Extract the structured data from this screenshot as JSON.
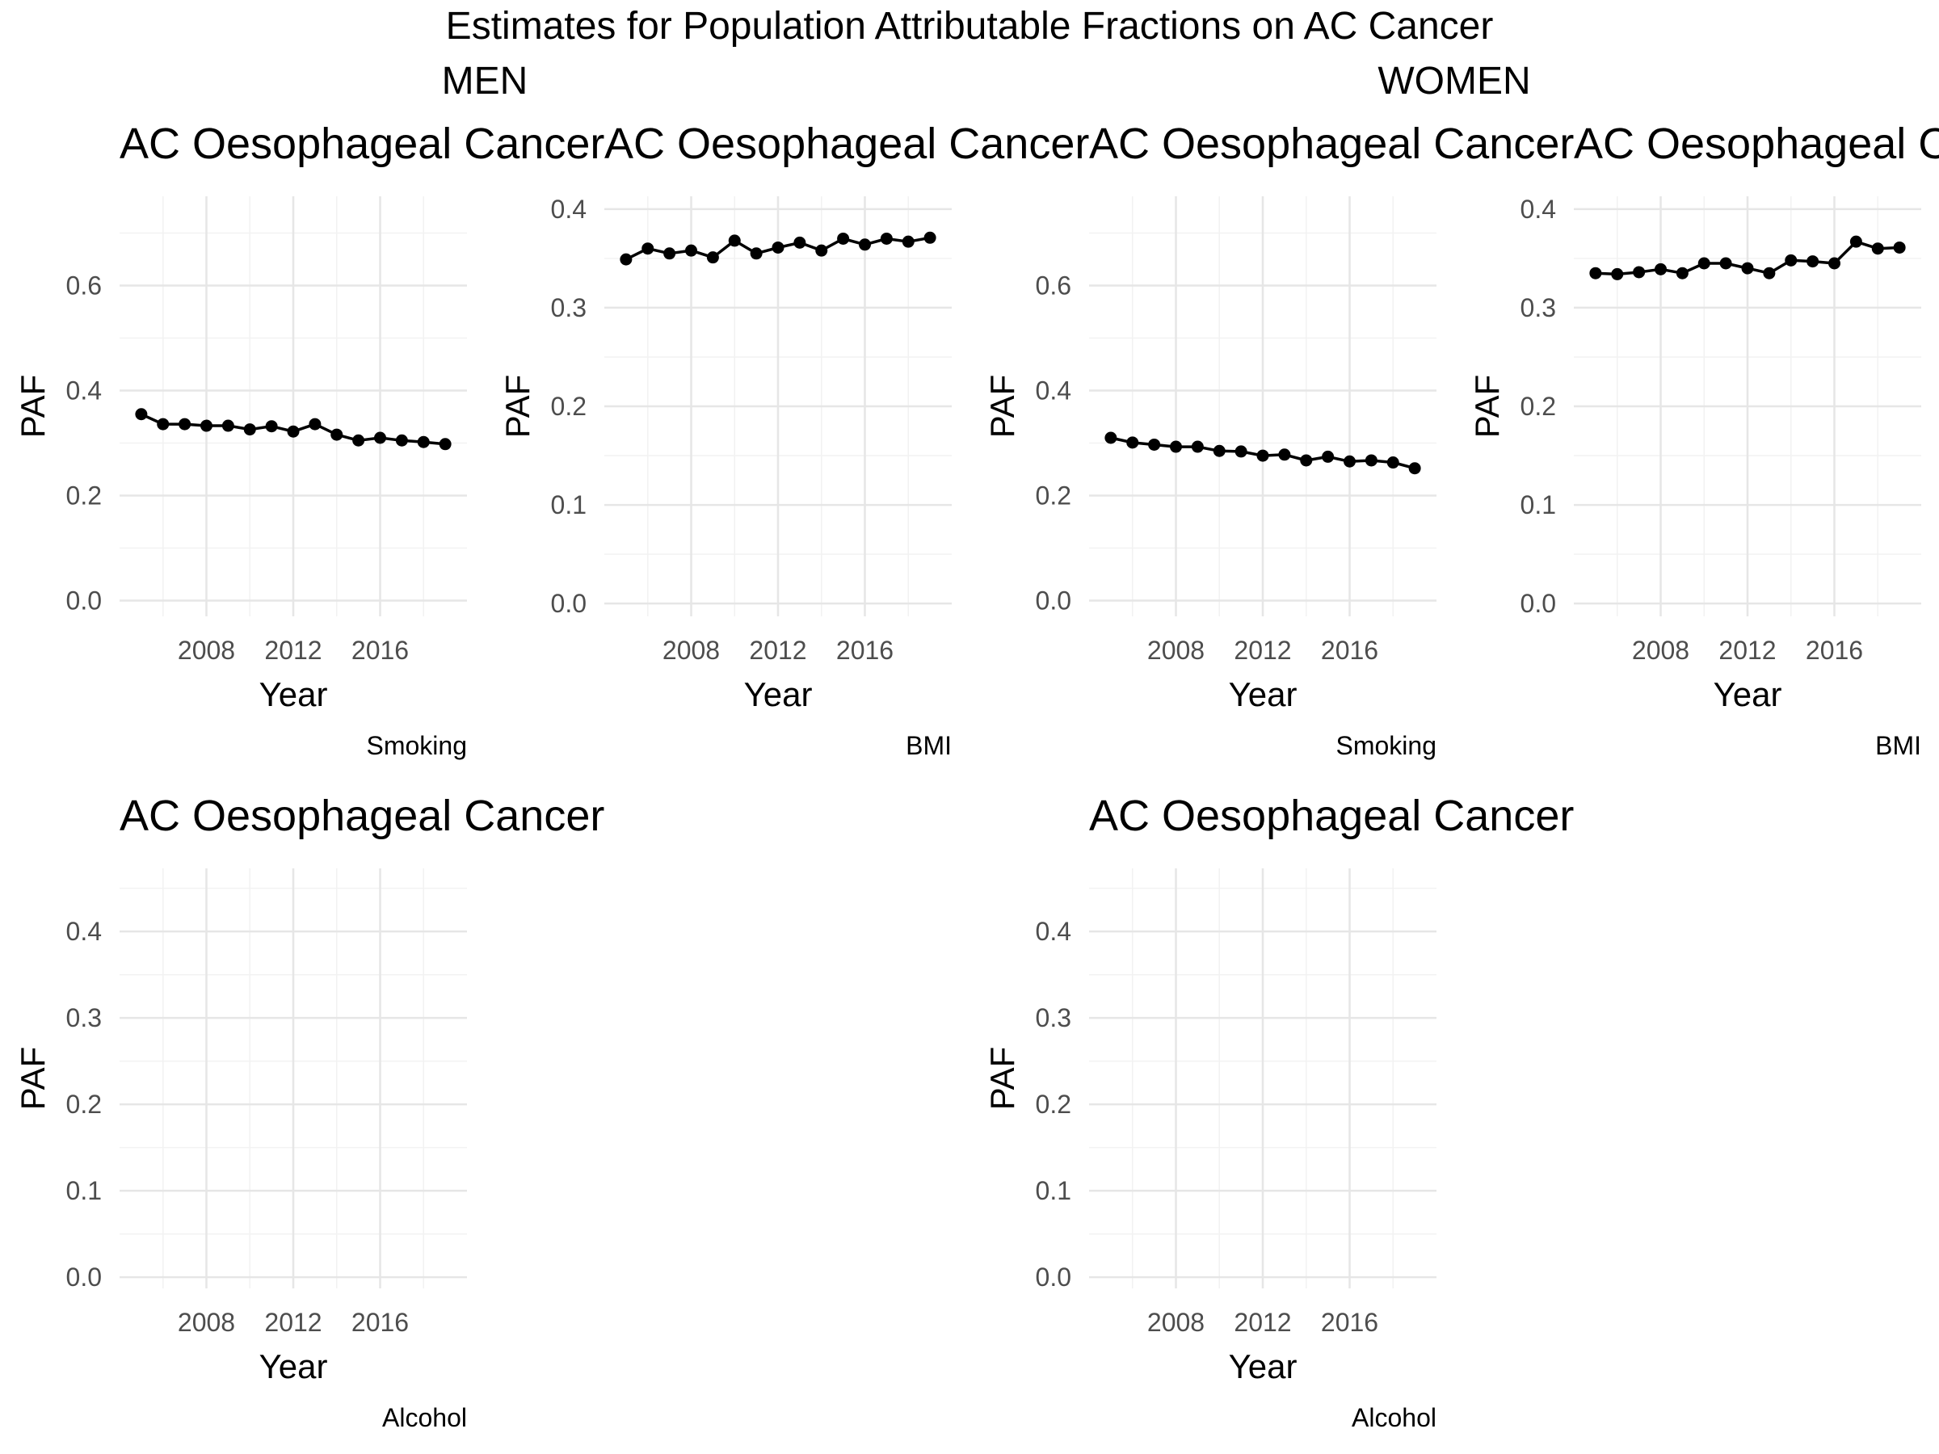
{
  "figure": {
    "title": "Estimates for Population Attributable Fractions on AC Cancer",
    "groups": [
      "MEN",
      "WOMEN"
    ]
  },
  "chart_data": [
    {
      "type": "line",
      "group": "MEN",
      "title": "AC Oesophageal Cancer",
      "caption": "Smoking",
      "xlabel": "Year",
      "ylabel": "PAF",
      "x": [
        2005,
        2006,
        2007,
        2008,
        2009,
        2010,
        2011,
        2012,
        2013,
        2014,
        2015,
        2016,
        2017,
        2018,
        2019
      ],
      "values": [
        0.355,
        0.336,
        0.336,
        0.333,
        0.333,
        0.326,
        0.332,
        0.322,
        0.336,
        0.316,
        0.305,
        0.31,
        0.305,
        0.302,
        0.298
      ],
      "xlim": [
        2004,
        2020
      ],
      "ylim": [
        -0.03,
        0.77
      ],
      "xticks": [
        2008,
        2012,
        2016
      ],
      "xtick_labels": [
        "2008",
        "2012",
        "2016"
      ],
      "yticks": [
        0.0,
        0.2,
        0.4,
        0.6
      ],
      "ytick_labels": [
        "0.0",
        "0.2",
        "0.4",
        "0.6"
      ],
      "grid": true
    },
    {
      "type": "line",
      "group": "MEN",
      "title": "AC Oesophageal Cancer",
      "caption": "BMI",
      "xlabel": "Year",
      "ylabel": "PAF",
      "x": [
        2005,
        2006,
        2007,
        2008,
        2009,
        2010,
        2011,
        2012,
        2013,
        2014,
        2015,
        2016,
        2017,
        2018,
        2019
      ],
      "values": [
        0.349,
        0.36,
        0.355,
        0.358,
        0.351,
        0.368,
        0.355,
        0.361,
        0.366,
        0.358,
        0.37,
        0.364,
        0.37,
        0.367,
        0.371
      ],
      "xlim": [
        2004,
        2020
      ],
      "ylim": [
        -0.013,
        0.413
      ],
      "xticks": [
        2008,
        2012,
        2016
      ],
      "xtick_labels": [
        "2008",
        "2012",
        "2016"
      ],
      "yticks": [
        0.0,
        0.1,
        0.2,
        0.3,
        0.4
      ],
      "ytick_labels": [
        "0.0",
        "0.1",
        "0.2",
        "0.3",
        "0.4"
      ],
      "grid": true
    },
    {
      "type": "line",
      "group": "WOMEN",
      "title": "AC Oesophageal Cancer",
      "caption": "Smoking",
      "xlabel": "Year",
      "ylabel": "PAF",
      "x": [
        2005,
        2006,
        2007,
        2008,
        2009,
        2010,
        2011,
        2012,
        2013,
        2014,
        2015,
        2016,
        2017,
        2018,
        2019
      ],
      "values": [
        0.31,
        0.301,
        0.297,
        0.293,
        0.293,
        0.285,
        0.284,
        0.276,
        0.278,
        0.267,
        0.274,
        0.265,
        0.267,
        0.263,
        0.252
      ],
      "xlim": [
        2004,
        2020
      ],
      "ylim": [
        -0.03,
        0.77
      ],
      "xticks": [
        2008,
        2012,
        2016
      ],
      "xtick_labels": [
        "2008",
        "2012",
        "2016"
      ],
      "yticks": [
        0.0,
        0.2,
        0.4,
        0.6
      ],
      "ytick_labels": [
        "0.0",
        "0.2",
        "0.4",
        "0.6"
      ],
      "grid": true
    },
    {
      "type": "line",
      "group": "WOMEN",
      "title": "AC Oesophageal C",
      "caption": "BMI",
      "xlabel": "Year",
      "ylabel": "PAF",
      "x": [
        2005,
        2006,
        2007,
        2008,
        2009,
        2010,
        2011,
        2012,
        2013,
        2014,
        2015,
        2016,
        2017,
        2018,
        2019
      ],
      "values": [
        0.335,
        0.334,
        0.336,
        0.339,
        0.335,
        0.345,
        0.345,
        0.34,
        0.335,
        0.348,
        0.347,
        0.345,
        0.367,
        0.36,
        0.361
      ],
      "xlim": [
        2004,
        2020
      ],
      "ylim": [
        -0.013,
        0.413
      ],
      "xticks": [
        2008,
        2012,
        2016
      ],
      "xtick_labels": [
        "2008",
        "2012",
        "2016"
      ],
      "yticks": [
        0.0,
        0.1,
        0.2,
        0.3,
        0.4
      ],
      "ytick_labels": [
        "0.0",
        "0.1",
        "0.2",
        "0.3",
        "0.4"
      ],
      "grid": true
    },
    {
      "type": "line",
      "group": "MEN",
      "title": "AC Oesophageal Cancer",
      "caption": "Alcohol",
      "xlabel": "Year",
      "ylabel": "PAF",
      "x": [],
      "values": [],
      "xlim": [
        2004,
        2020
      ],
      "ylim": [
        -0.013,
        0.473
      ],
      "xticks": [
        2008,
        2012,
        2016
      ],
      "xtick_labels": [
        "2008",
        "2012",
        "2016"
      ],
      "yticks": [
        0.0,
        0.1,
        0.2,
        0.3,
        0.4
      ],
      "ytick_labels": [
        "0.0",
        "0.1",
        "0.2",
        "0.3",
        "0.4"
      ],
      "grid": true
    },
    {
      "type": "line",
      "group": "WOMEN",
      "title": "AC Oesophageal Cancer",
      "caption": "Alcohol",
      "xlabel": "Year",
      "ylabel": "PAF",
      "x": [],
      "values": [],
      "xlim": [
        2004,
        2020
      ],
      "ylim": [
        -0.013,
        0.473
      ],
      "xticks": [
        2008,
        2012,
        2016
      ],
      "xtick_labels": [
        "2008",
        "2012",
        "2016"
      ],
      "yticks": [
        0.0,
        0.1,
        0.2,
        0.3,
        0.4
      ],
      "ytick_labels": [
        "0.0",
        "0.1",
        "0.2",
        "0.3",
        "0.4"
      ],
      "grid": true
    }
  ]
}
